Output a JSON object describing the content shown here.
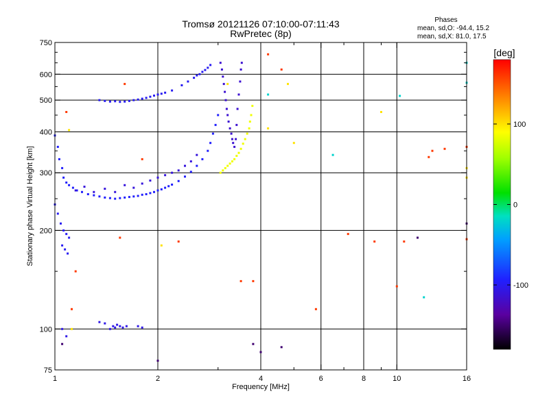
{
  "chart_data": {
    "type": "scatter",
    "title": "Tromsø 20121126 07:10:00-07:11:43",
    "subtitle": "RwPretec (8p)",
    "stats_header": "Phases",
    "stats": [
      "mean, sd,O: -94.4, 15.2",
      "mean, sd,X:  81.0, 17.5"
    ],
    "xlabel": "Frequency [MHz]",
    "ylabel": "Stationary phase Virtual Height [km]",
    "x_scale": "log",
    "y_scale": "log",
    "xlim": [
      1,
      16
    ],
    "ylim": [
      75,
      750
    ],
    "x_ticks": [
      1,
      2,
      4,
      6,
      8,
      10,
      16
    ],
    "x_tick_labels": [
      "1",
      "2",
      "4",
      "6",
      "8",
      "10",
      "16"
    ],
    "x_minor_ticks": [
      3,
      5,
      7,
      9
    ],
    "x_grid": [
      2,
      4,
      6,
      8,
      10
    ],
    "y_ticks": [
      75,
      100,
      200,
      300,
      400,
      500,
      600,
      750
    ],
    "y_tick_labels": [
      "75",
      "100",
      "200",
      "300",
      "400",
      "500",
      "600",
      "750"
    ],
    "y_minor_ticks": [
      150,
      250,
      350,
      450,
      550,
      650,
      700
    ],
    "y_grid": [
      100,
      200,
      300,
      400,
      500,
      600
    ],
    "grid": true,
    "colorbar": {
      "label": "[deg]",
      "range": [
        -180,
        180
      ],
      "ticks": [
        100,
        0,
        -100
      ],
      "tick_labels": [
        "100",
        "0",
        "-100"
      ]
    },
    "series": [
      {
        "phase_deg": -95,
        "points": [
          [
            1.0,
            390
          ],
          [
            1.02,
            360
          ],
          [
            1.03,
            330
          ],
          [
            1.05,
            310
          ],
          [
            1.06,
            290
          ],
          [
            1.08,
            280
          ],
          [
            1.1,
            275
          ],
          [
            1.13,
            270
          ],
          [
            1.16,
            265
          ],
          [
            1.2,
            262
          ],
          [
            1.25,
            258
          ],
          [
            1.3,
            256
          ],
          [
            1.35,
            254
          ],
          [
            1.4,
            252
          ],
          [
            1.45,
            251
          ],
          [
            1.5,
            250
          ],
          [
            1.55,
            251
          ],
          [
            1.6,
            252
          ],
          [
            1.65,
            253
          ],
          [
            1.7,
            254
          ],
          [
            1.75,
            255
          ],
          [
            1.8,
            257
          ],
          [
            1.85,
            258
          ],
          [
            1.9,
            260
          ],
          [
            1.95,
            262
          ],
          [
            2.0,
            265
          ],
          [
            2.05,
            267
          ],
          [
            2.1,
            270
          ],
          [
            2.15,
            273
          ],
          [
            2.2,
            276
          ],
          [
            2.3,
            283
          ],
          [
            2.4,
            292
          ],
          [
            2.5,
            302
          ],
          [
            2.6,
            315
          ],
          [
            2.7,
            330
          ],
          [
            2.8,
            350
          ],
          [
            2.85,
            370
          ],
          [
            2.9,
            395
          ],
          [
            2.95,
            420
          ],
          [
            3.0,
            450
          ]
        ]
      },
      {
        "phase_deg": -110,
        "points": [
          [
            1.15,
            265
          ],
          [
            1.22,
            272
          ],
          [
            1.3,
            262
          ],
          [
            1.4,
            268
          ],
          [
            1.5,
            262
          ],
          [
            1.6,
            275
          ],
          [
            1.7,
            270
          ],
          [
            1.8,
            278
          ],
          [
            1.9,
            284
          ],
          [
            2.0,
            290
          ],
          [
            2.1,
            295
          ],
          [
            2.2,
            300
          ],
          [
            2.3,
            305
          ],
          [
            2.4,
            315
          ],
          [
            2.5,
            325
          ],
          [
            2.6,
            340
          ]
        ]
      },
      {
        "phase_deg": -100,
        "points": [
          [
            1.35,
            500
          ],
          [
            1.4,
            497
          ],
          [
            1.45,
            495
          ],
          [
            1.5,
            496
          ],
          [
            1.55,
            494
          ],
          [
            1.6,
            495
          ],
          [
            1.65,
            497
          ],
          [
            1.7,
            500
          ],
          [
            1.75,
            502
          ],
          [
            1.8,
            505
          ],
          [
            1.85,
            508
          ],
          [
            1.9,
            512
          ],
          [
            1.95,
            516
          ],
          [
            2.0,
            520
          ],
          [
            2.05,
            523
          ],
          [
            2.1,
            527
          ],
          [
            2.2,
            535
          ],
          [
            2.35,
            555
          ],
          [
            2.45,
            570
          ],
          [
            2.55,
            585
          ],
          [
            2.6,
            595
          ],
          [
            2.65,
            600
          ],
          [
            2.7,
            610
          ],
          [
            2.75,
            618
          ],
          [
            2.8,
            628
          ],
          [
            2.85,
            640
          ]
        ]
      },
      {
        "phase_deg": -115,
        "points": [
          [
            3.05,
            650
          ],
          [
            3.08,
            620
          ],
          [
            3.1,
            590
          ],
          [
            3.12,
            560
          ],
          [
            3.14,
            530
          ],
          [
            3.16,
            500
          ],
          [
            3.18,
            470
          ],
          [
            3.2,
            450
          ],
          [
            3.22,
            430
          ],
          [
            3.25,
            410
          ],
          [
            3.28,
            395
          ],
          [
            3.3,
            380
          ],
          [
            3.32,
            370
          ],
          [
            3.35,
            360
          ],
          [
            3.38,
            380
          ],
          [
            3.4,
            420
          ],
          [
            3.42,
            470
          ],
          [
            3.45,
            520
          ],
          [
            3.48,
            570
          ],
          [
            3.5,
            620
          ],
          [
            3.52,
            650
          ]
        ]
      },
      {
        "phase_deg": 85,
        "points": [
          [
            3.05,
            300
          ],
          [
            3.1,
            305
          ],
          [
            3.15,
            310
          ],
          [
            3.2,
            315
          ],
          [
            3.25,
            320
          ],
          [
            3.3,
            325
          ],
          [
            3.35,
            330
          ],
          [
            3.4,
            338
          ],
          [
            3.45,
            345
          ],
          [
            3.5,
            355
          ],
          [
            3.55,
            368
          ],
          [
            3.6,
            380
          ],
          [
            3.65,
            395
          ],
          [
            3.7,
            410
          ],
          [
            3.72,
            430
          ],
          [
            3.75,
            450
          ],
          [
            3.78,
            480
          ]
        ]
      },
      {
        "phase_deg": -100,
        "points": [
          [
            1.0,
            240
          ],
          [
            1.02,
            225
          ],
          [
            1.04,
            210
          ],
          [
            1.06,
            200
          ],
          [
            1.08,
            195
          ],
          [
            1.1,
            190
          ],
          [
            1.05,
            180
          ],
          [
            1.07,
            175
          ],
          [
            1.09,
            170
          ]
        ]
      },
      {
        "phase_deg": -105,
        "points": [
          [
            1.45,
            100
          ],
          [
            1.48,
            102
          ],
          [
            1.5,
            101
          ],
          [
            1.52,
            103
          ],
          [
            1.55,
            102
          ],
          [
            1.58,
            101
          ],
          [
            1.62,
            102
          ],
          [
            1.75,
            102
          ],
          [
            1.8,
            101
          ],
          [
            1.35,
            105
          ],
          [
            1.4,
            104
          ],
          [
            1.05,
            100
          ],
          [
            1.08,
            95
          ]
        ]
      },
      {
        "phase_deg": 160,
        "points": [
          [
            4.2,
            690
          ],
          [
            4.6,
            620
          ],
          [
            10.5,
            185
          ],
          [
            8.6,
            185
          ],
          [
            7.2,
            195
          ],
          [
            10.0,
            135
          ],
          [
            12.4,
            335
          ],
          [
            12.7,
            350
          ],
          [
            13.8,
            355
          ],
          [
            5.8,
            115
          ],
          [
            3.8,
            140
          ],
          [
            3.5,
            140
          ],
          [
            1.55,
            190
          ],
          [
            1.6,
            560
          ],
          [
            1.08,
            460
          ],
          [
            1.15,
            150
          ],
          [
            1.12,
            115
          ],
          [
            1.8,
            330
          ],
          [
            2.3,
            185
          ],
          [
            16.0,
            188
          ],
          [
            16.0,
            360
          ]
        ]
      },
      {
        "phase_deg": 100,
        "points": [
          [
            4.8,
            560
          ],
          [
            4.2,
            410
          ],
          [
            5.0,
            370
          ],
          [
            3.2,
            560
          ],
          [
            9.0,
            460
          ],
          [
            2.05,
            180
          ],
          [
            1.1,
            405
          ],
          [
            16.0,
            290
          ],
          [
            16.0,
            310
          ],
          [
            1.12,
            100
          ]
        ]
      },
      {
        "phase_deg": -20,
        "points": [
          [
            4.2,
            520
          ],
          [
            6.5,
            340
          ],
          [
            10.2,
            515
          ],
          [
            12.0,
            125
          ],
          [
            16.0,
            565
          ],
          [
            16.0,
            650
          ]
        ]
      },
      {
        "phase_deg": -150,
        "points": [
          [
            3.8,
            90
          ],
          [
            4.0,
            85
          ],
          [
            4.6,
            88
          ],
          [
            1.05,
            90
          ],
          [
            2.0,
            80
          ],
          [
            16.0,
            210
          ],
          [
            11.5,
            190
          ]
        ]
      }
    ]
  }
}
